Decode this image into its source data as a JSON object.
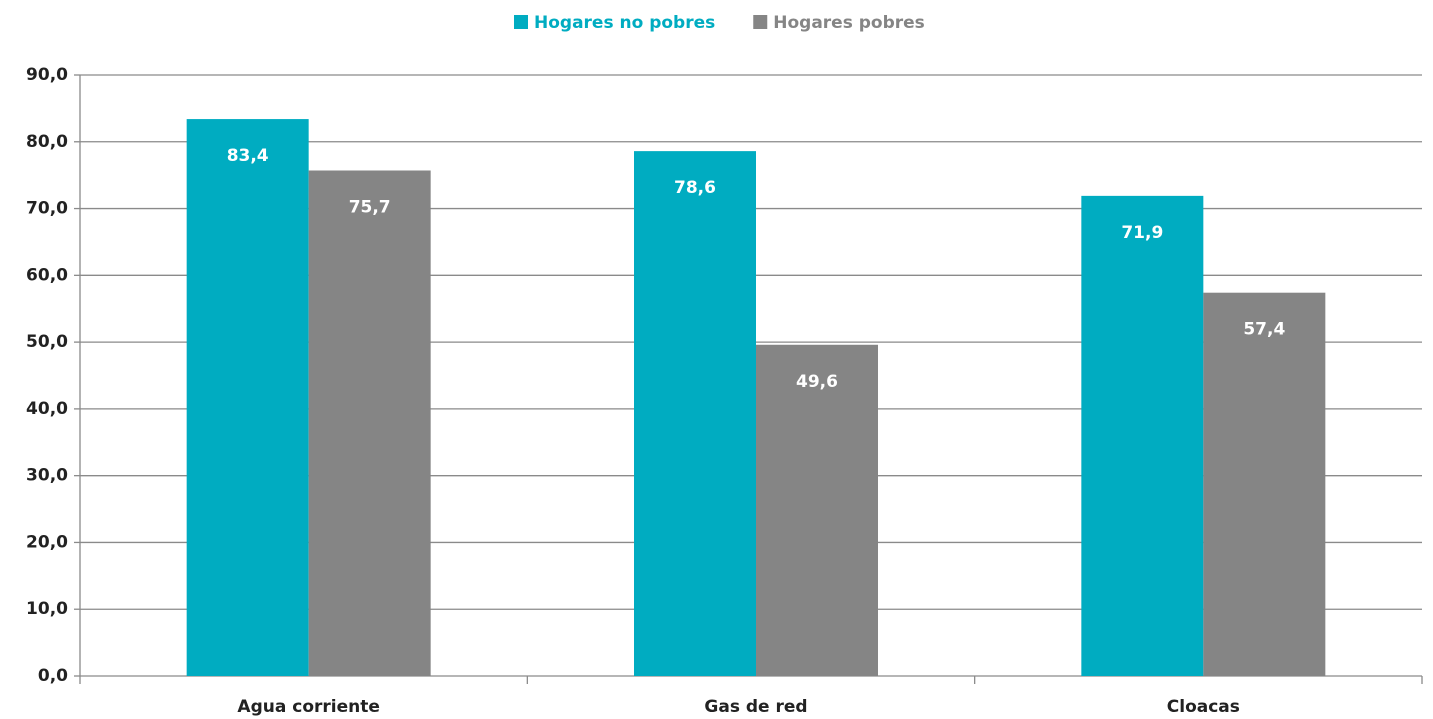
{
  "chart_data": {
    "type": "bar",
    "categories": [
      "Agua corriente",
      "Gas de red",
      "Cloacas"
    ],
    "series": [
      {
        "name": "Hogares no pobres",
        "color": "#00acc1",
        "values": [
          83.4,
          78.6,
          71.9
        ],
        "value_labels": [
          "83,4",
          "78,6",
          "71,9"
        ]
      },
      {
        "name": "Hogares pobres",
        "color": "#858585",
        "values": [
          75.7,
          49.6,
          57.4
        ],
        "value_labels": [
          "75,7",
          "49,6",
          "57,4"
        ]
      }
    ],
    "ylim": [
      0,
      90
    ],
    "yticks": [
      {
        "value": 0,
        "label": "0,0"
      },
      {
        "value": 10,
        "label": "10,0"
      },
      {
        "value": 20,
        "label": "20,0"
      },
      {
        "value": 30,
        "label": "30,0"
      },
      {
        "value": 40,
        "label": "40,0"
      },
      {
        "value": 50,
        "label": "50,0"
      },
      {
        "value": 60,
        "label": "60,0"
      },
      {
        "value": 70,
        "label": "70,0"
      },
      {
        "value": 80,
        "label": "80,0"
      },
      {
        "value": 90,
        "label": "90,0"
      }
    ],
    "grid": true,
    "legend": "top"
  }
}
